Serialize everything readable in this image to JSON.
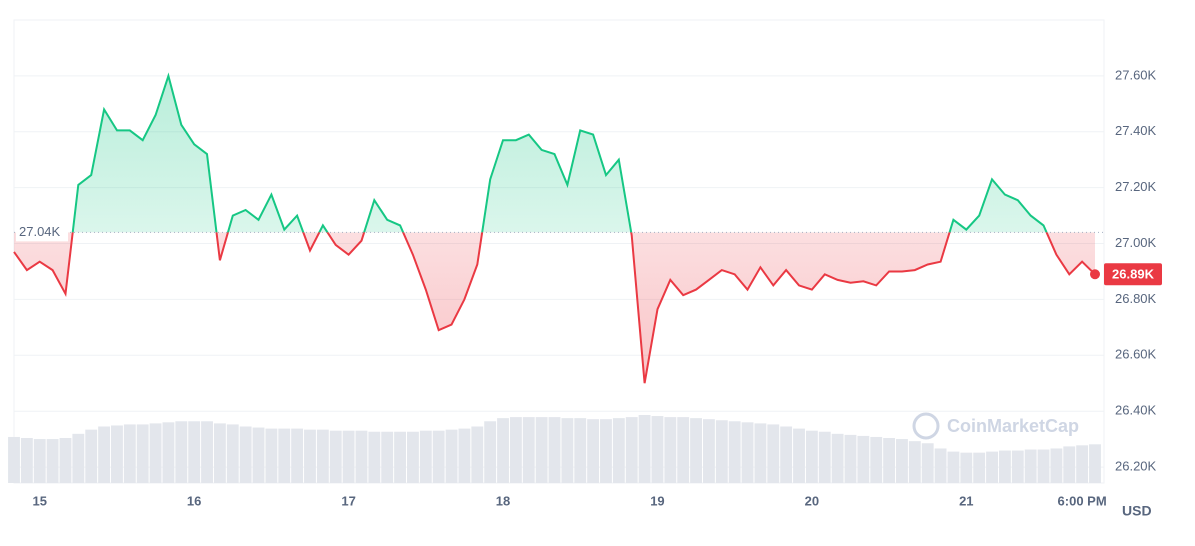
{
  "chart_data": {
    "type": "line",
    "categories": [
      null,
      null,
      "15",
      null,
      null,
      null,
      null,
      null,
      null,
      null,
      null,
      null,
      null,
      null,
      "16",
      null,
      null,
      null,
      null,
      null,
      null,
      null,
      null,
      null,
      null,
      null,
      "17",
      null,
      null,
      null,
      null,
      null,
      null,
      null,
      null,
      null,
      null,
      null,
      "18",
      null,
      null,
      null,
      null,
      null,
      null,
      null,
      null,
      null,
      null,
      null,
      "19",
      null,
      null,
      null,
      null,
      null,
      null,
      null,
      null,
      null,
      null,
      null,
      "20",
      null,
      null,
      null,
      null,
      null,
      null,
      null,
      null,
      null,
      null,
      null,
      "21",
      null,
      null,
      null,
      null,
      null,
      null,
      null,
      null,
      "6:00 PM",
      null
    ],
    "values": [
      26970,
      26905,
      26935,
      26905,
      26820,
      27210,
      27245,
      27480,
      27405,
      27405,
      27370,
      27460,
      27600,
      27425,
      27355,
      27320,
      26940,
      27100,
      27120,
      27085,
      27175,
      27050,
      27100,
      26975,
      27065,
      26995,
      26960,
      27010,
      27155,
      27085,
      27065,
      26960,
      26835,
      26690,
      26710,
      26800,
      26925,
      27230,
      27370,
      27370,
      27390,
      27335,
      27320,
      27210,
      27405,
      27390,
      27245,
      27300,
      27030,
      26500,
      26765,
      26870,
      26815,
      26835,
      26870,
      26905,
      26890,
      26835,
      26915,
      26850,
      26905,
      26850,
      26835,
      26890,
      26870,
      26860,
      26865,
      26850,
      26900,
      26900,
      26905,
      26925,
      26935,
      27085,
      27050,
      27100,
      27230,
      27175,
      27155,
      27100,
      27065,
      26960,
      26890,
      26935,
      26890
    ],
    "volume": [
      44,
      43,
      42,
      42,
      43,
      47,
      51,
      54,
      55,
      56,
      56,
      57,
      58,
      59,
      59,
      59,
      57,
      56,
      54,
      53,
      52,
      52,
      52,
      51,
      51,
      50,
      50,
      50,
      49,
      49,
      49,
      49,
      50,
      50,
      51,
      52,
      54,
      59,
      62,
      63,
      63,
      63,
      63,
      62,
      62,
      61,
      61,
      62,
      63,
      65,
      64,
      63,
      63,
      62,
      61,
      60,
      59,
      58,
      57,
      56,
      54,
      52,
      50,
      49,
      47,
      46,
      45,
      44,
      43,
      42,
      40,
      38,
      33,
      30,
      29,
      29,
      30,
      31,
      31,
      32,
      32,
      33,
      35,
      36,
      37
    ],
    "baseline": {
      "value": 27040,
      "label": "27.04K"
    },
    "current": {
      "value": 26890,
      "label": "26.89K"
    },
    "up_color": "#16c784",
    "down_color": "#ea3943",
    "ylim": [
      26143,
      27800
    ],
    "yticks": [
      {
        "value": 26200,
        "label": "26.20K"
      },
      {
        "value": 26400,
        "label": "26.40K"
      },
      {
        "value": 26600,
        "label": "26.60K"
      },
      {
        "value": 26800,
        "label": "26.80K"
      },
      {
        "value": 27000,
        "label": "27.00K"
      },
      {
        "value": 27200,
        "label": "27.20K"
      },
      {
        "value": 27400,
        "label": "27.40K"
      },
      {
        "value": 27600,
        "label": "27.60K"
      }
    ],
    "y_label": "USD",
    "watermark": "CoinMarketCap",
    "grid": true
  }
}
